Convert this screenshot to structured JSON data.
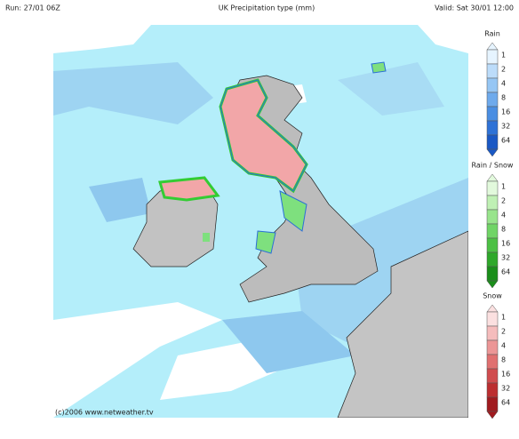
{
  "header": {
    "run": "Run: 27/01 06Z",
    "title": "UK Precipitation type (mm)",
    "valid": "Valid: Sat 30/01 12:00"
  },
  "legends": [
    {
      "title": "Rain",
      "ticks": [
        1,
        2,
        4,
        8,
        16,
        32,
        64
      ]
    },
    {
      "title": "Rain / Snow",
      "ticks": [
        1,
        2,
        4,
        8,
        16,
        32,
        64
      ]
    },
    {
      "title": "Snow",
      "ticks": [
        1,
        2,
        4,
        8,
        16,
        32,
        64
      ]
    }
  ],
  "footer": {
    "credit": "(c)2006 www.netweather.tv"
  }
}
